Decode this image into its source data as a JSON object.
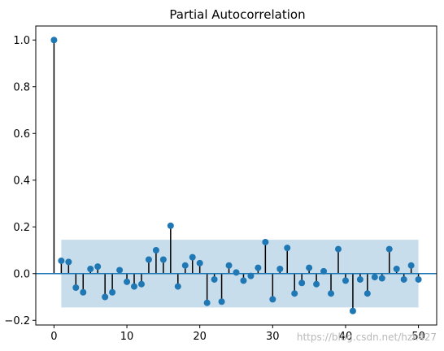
{
  "chart_data": {
    "type": "stem",
    "title": "Partial Autocorrelation",
    "xlabel": "",
    "ylabel": "",
    "xlim": [
      -2.5,
      52.5
    ],
    "ylim": [
      -0.22,
      1.06
    ],
    "xticks": [
      0,
      10,
      20,
      30,
      40,
      50
    ],
    "yticks": [
      -0.2,
      0.0,
      0.2,
      0.4,
      0.6,
      0.8,
      1.0
    ],
    "xtick_labels": [
      "0",
      "10",
      "20",
      "30",
      "40",
      "50"
    ],
    "ytick_labels": [
      "−0.2",
      "0.0",
      "0.2",
      "0.4",
      "0.6",
      "0.8",
      "1.0"
    ],
    "confidence_band": {
      "x_start": 1,
      "x_end": 50,
      "lower": -0.145,
      "upper": 0.145
    },
    "lags": [
      0,
      1,
      2,
      3,
      4,
      5,
      6,
      7,
      8,
      9,
      10,
      11,
      12,
      13,
      14,
      15,
      16,
      17,
      18,
      19,
      20,
      21,
      22,
      23,
      24,
      25,
      26,
      27,
      28,
      29,
      30,
      31,
      32,
      33,
      34,
      35,
      36,
      37,
      38,
      39,
      40,
      41,
      42,
      43,
      44,
      45,
      46,
      47,
      48,
      49,
      50
    ],
    "values": [
      1.0,
      0.055,
      0.05,
      -0.06,
      -0.08,
      0.02,
      0.03,
      -0.1,
      -0.08,
      0.015,
      -0.035,
      -0.055,
      -0.045,
      0.06,
      0.1,
      0.06,
      0.205,
      -0.055,
      0.035,
      0.07,
      0.045,
      -0.125,
      -0.025,
      -0.12,
      0.035,
      0.005,
      -0.03,
      -0.01,
      0.025,
      0.135,
      -0.11,
      0.02,
      0.11,
      -0.085,
      -0.04,
      0.025,
      -0.045,
      0.01,
      -0.085,
      0.105,
      -0.03,
      -0.16,
      -0.025,
      -0.085,
      -0.015,
      -0.02,
      0.105,
      0.02,
      -0.025,
      0.035,
      -0.025
    ],
    "grid": false,
    "colors": {
      "marker": "#1f77b4",
      "band": "#1f77b4",
      "stem": "#000000",
      "zero_line": "#1f77b4"
    }
  },
  "watermark": "https://blog.csdn.net/hzk427"
}
